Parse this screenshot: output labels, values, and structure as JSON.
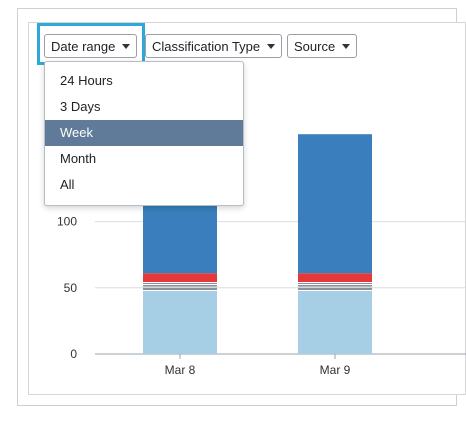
{
  "filters": {
    "date_range_label": "Date range",
    "classification_label": "Classification Type",
    "source_label": "Source"
  },
  "date_range_menu": {
    "items": [
      "24 Hours",
      "3 Days",
      "Week",
      "Month",
      "All"
    ],
    "selected": "Week"
  },
  "colors": {
    "series_dark_blue": "#3a7ebd",
    "series_red": "#e53838",
    "series_gray": "#8a8f99",
    "series_light_blue": "#a6cfe5",
    "menu_selected": "#5f7b99",
    "focus_ring": "#2ea8d8"
  },
  "chart_data": {
    "type": "bar",
    "stacked": true,
    "categories": [
      "Mar 8",
      "Mar 9"
    ],
    "y_ticks": [
      0,
      50,
      100
    ],
    "ylim": [
      0,
      166
    ],
    "grid": true,
    "series": [
      {
        "color": "#a6cfe5",
        "values": [
          48,
          48
        ]
      },
      {
        "color": "#8a8f99",
        "values": [
          6,
          6
        ]
      },
      {
        "color": "#e53838",
        "values": [
          7,
          7
        ]
      },
      {
        "color": "#3a7ebd",
        "values": [
          105,
          105
        ]
      }
    ]
  }
}
